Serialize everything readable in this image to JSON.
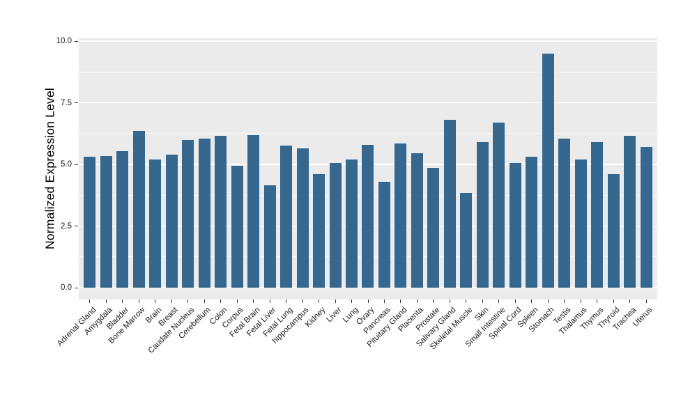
{
  "chart_data": {
    "type": "bar",
    "title": "",
    "xlabel": "",
    "ylabel": "Normalized Expression Level",
    "ylim": [
      0,
      10
    ],
    "yticks": [
      0.0,
      2.5,
      5.0,
      7.5,
      10.0
    ],
    "ytick_labels": [
      "0.0",
      "2.5",
      "5.0",
      "7.5",
      "10.0"
    ],
    "yminor_ticks": [
      1.25,
      3.75,
      6.25,
      8.75
    ],
    "grid": "major and minor horizontal gridlines, white on gray panel",
    "legend_position": "none",
    "bar_color": "#36678F",
    "panel_background": "#EBEBEB",
    "categories": [
      "Adrenal Gland",
      "Amygdala",
      "Bladder",
      "Bone Marrow",
      "Brain",
      "Breast",
      "Caudate Nucleus",
      "Cerebellum",
      "Colon",
      "Corpus",
      "Fetal Brain",
      "Fetal Liver",
      "Fetal Lung",
      "hippocampus",
      "Kidney",
      "Liver",
      "Lung",
      "Ovary",
      "Pancreas",
      "Pituitary Gland",
      "Placenta",
      "Prostate",
      "Salivary Gland",
      "Skeletal Muscle",
      "Skin",
      "Small Intestine",
      "Spinal Cord",
      "Spleen",
      "Stomach",
      "Testis",
      "Thalamus",
      "Thymus",
      "Thyroid",
      "Trachea",
      "Uterus"
    ],
    "values": [
      5.3,
      5.35,
      5.55,
      6.35,
      5.2,
      5.4,
      6.0,
      6.05,
      6.15,
      4.95,
      6.2,
      4.15,
      5.75,
      5.65,
      4.6,
      5.05,
      5.2,
      5.8,
      4.3,
      5.85,
      5.45,
      4.85,
      6.8,
      3.85,
      5.9,
      6.7,
      5.05,
      5.3,
      9.5,
      6.05,
      5.2,
      5.9,
      4.6,
      6.15,
      5.7
    ]
  }
}
